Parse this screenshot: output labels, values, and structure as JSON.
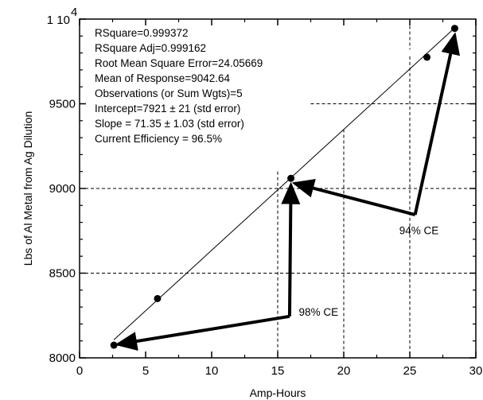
{
  "chart_data": {
    "type": "scatter",
    "xlabel": "Amp-Hours",
    "ylabel": "Lbs of Al Metal from Ag Dilution",
    "xlim": [
      0,
      30
    ],
    "ylim": [
      8000,
      10000
    ],
    "x_ticks": [
      "0",
      "5",
      "10",
      "15",
      "20",
      "25",
      "30"
    ],
    "y_ticks": [
      "8000",
      "8500",
      "9000",
      "9500"
    ],
    "y_top_tick": {
      "mantissa": "1 10",
      "exponent": "4"
    },
    "grid": "dashed, partial",
    "points": [
      {
        "x": 2.6,
        "y": 8075
      },
      {
        "x": 5.9,
        "y": 8350
      },
      {
        "x": 16.0,
        "y": 9060
      },
      {
        "x": 26.3,
        "y": 9775
      },
      {
        "x": 28.4,
        "y": 9945
      }
    ],
    "fit_line": {
      "x": [
        2.6,
        28.4
      ],
      "y": [
        8107,
        9948
      ]
    },
    "stats": [
      "RSquare=0.999372",
      "RSquare Adj=0.999162",
      "Root Mean Square Error=24.05669",
      "Mean of Response=9042.64",
      "Observations (or Sum Wgts)=5",
      "Intercept=7921 ± 21 (std error)",
      "Slope = 71.35 ± 1.03 (std error)",
      "Current Efficiency = 96.5%"
    ],
    "annotations": [
      {
        "text": "98% CE",
        "label_at": {
          "x": 16.6,
          "y": 8250
        },
        "path": [
          {
            "x": 15.9,
            "y": 8245
          },
          {
            "x": 2.9,
            "y": 8080
          },
          {
            "x": 15.9,
            "y": 8245
          },
          {
            "x": 16.0,
            "y": 9020
          }
        ]
      },
      {
        "text": "94% CE",
        "label_at": {
          "x": 24.2,
          "y": 8730
        },
        "path": [
          {
            "x": 25.4,
            "y": 8845
          },
          {
            "x": 16.3,
            "y": 9030
          },
          {
            "x": 25.4,
            "y": 8845
          },
          {
            "x": 28.4,
            "y": 9905
          }
        ]
      }
    ]
  }
}
